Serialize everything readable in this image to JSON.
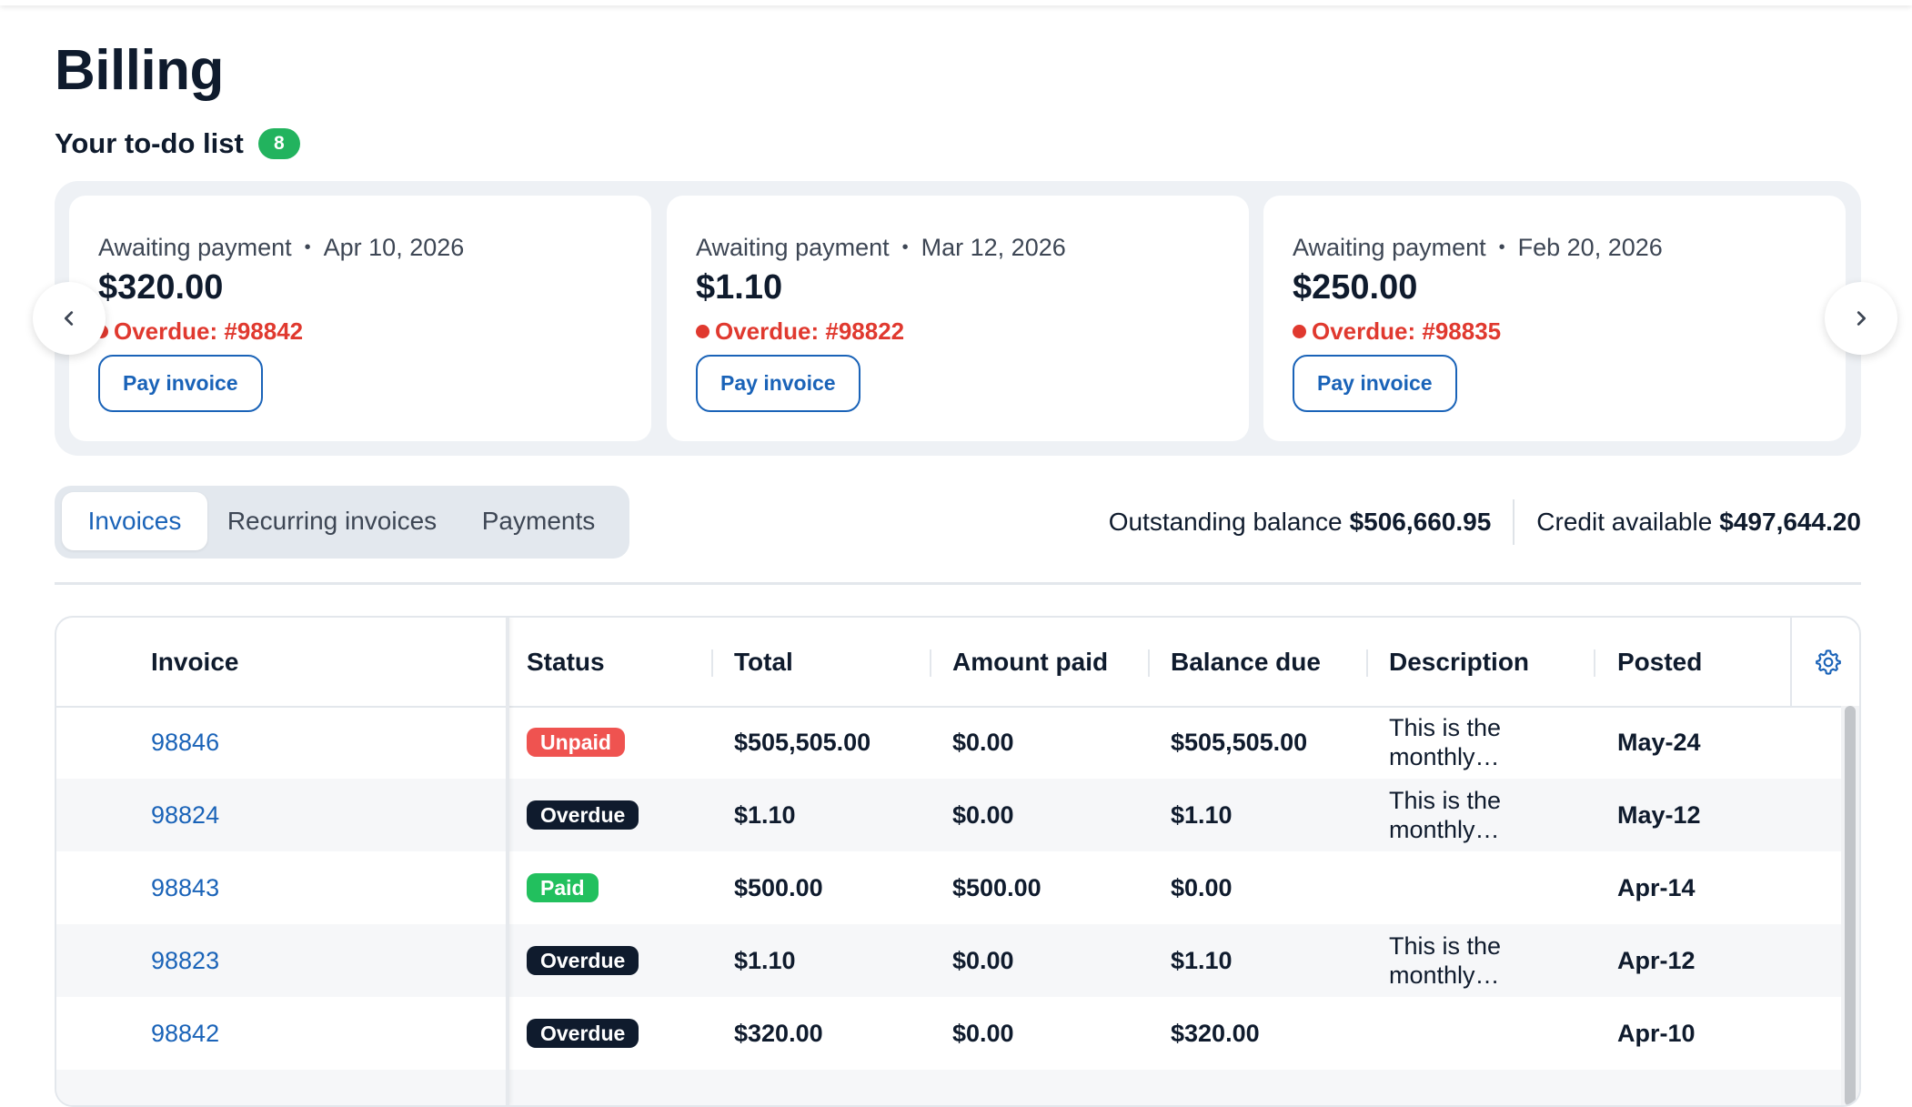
{
  "page": {
    "title": "Billing"
  },
  "todo": {
    "heading": "Your to-do list",
    "count": "8",
    "separator": "•",
    "pay_label": "Pay invoice",
    "cards": [
      {
        "status": "Awaiting payment",
        "date": "Apr 10, 2026",
        "amount": "$320.00",
        "overdue": "Overdue: #98842"
      },
      {
        "status": "Awaiting payment",
        "date": "Mar 12, 2026",
        "amount": "$1.10",
        "overdue": "Overdue: #98822"
      },
      {
        "status": "Awaiting payment",
        "date": "Feb 20, 2026",
        "amount": "$250.00",
        "overdue": "Overdue: #98835"
      }
    ]
  },
  "tabs": [
    {
      "label": "Invoices",
      "active": true
    },
    {
      "label": "Recurring invoices",
      "active": false
    },
    {
      "label": "Payments",
      "active": false
    }
  ],
  "balances": {
    "outstanding_label": "Outstanding balance",
    "outstanding_value": "$506,660.95",
    "credit_label": "Credit available",
    "credit_value": "$497,644.20"
  },
  "table": {
    "columns": [
      "Invoice",
      "Status",
      "Total",
      "Amount paid",
      "Balance due",
      "Description",
      "Posted"
    ],
    "rows": [
      {
        "invoice": "98846",
        "status": "Unpaid",
        "total": "$505,505.00",
        "paid": "$0.00",
        "balance": "$505,505.00",
        "description": "This is the monthly…",
        "posted": "May-24"
      },
      {
        "invoice": "98824",
        "status": "Overdue",
        "total": "$1.10",
        "paid": "$0.00",
        "balance": "$1.10",
        "description": "This is the monthly…",
        "posted": "May-12"
      },
      {
        "invoice": "98843",
        "status": "Paid",
        "total": "$500.00",
        "paid": "$500.00",
        "balance": "$0.00",
        "description": "",
        "posted": "Apr-14"
      },
      {
        "invoice": "98823",
        "status": "Overdue",
        "total": "$1.10",
        "paid": "$0.00",
        "balance": "$1.10",
        "description": "This is the monthly…",
        "posted": "Apr-12"
      },
      {
        "invoice": "98842",
        "status": "Overdue",
        "total": "$320.00",
        "paid": "$0.00",
        "balance": "$320.00",
        "description": "",
        "posted": "Apr-10"
      }
    ]
  },
  "colors": {
    "accent": "#1a63b8",
    "overdue_text": "#e0392f",
    "count_badge": "#22b35e",
    "status": {
      "Unpaid": "#ef5350",
      "Overdue": "#0f1b2d",
      "Paid": "#22c05e"
    }
  },
  "icons": {
    "prev": "chevron-left-icon",
    "next": "chevron-right-icon",
    "settings": "gear-icon"
  }
}
